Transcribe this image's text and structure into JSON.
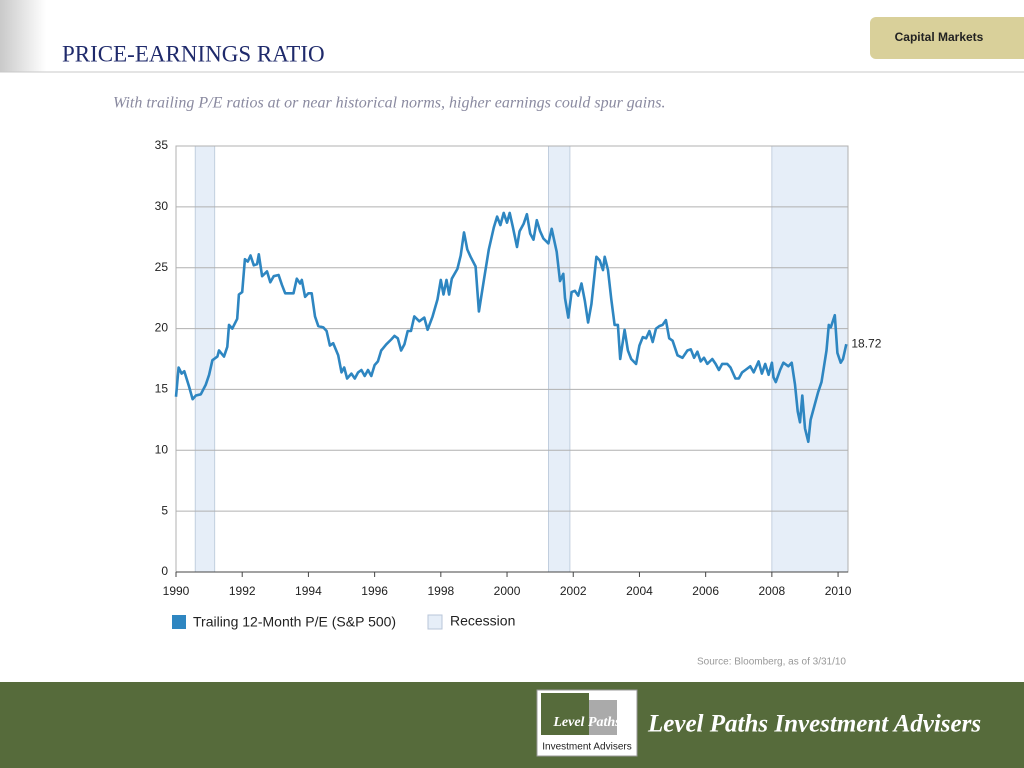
{
  "page": {
    "tab": "Capital Markets",
    "title": "PRICE-EARNINGS RATIO",
    "subtitle": "With trailing P/E ratios at or near historical norms, higher earnings could spur gains.",
    "source": "Source: Bloomberg, as of 3/31/10",
    "company": "Level Paths Investment Advisers",
    "logo_top": "Level Paths",
    "logo_bottom": "Investment Advisers"
  },
  "chart_data": {
    "type": "line",
    "x": [
      1990.0,
      1990.08,
      1990.17,
      1990.25,
      1990.4,
      1990.5,
      1990.6,
      1990.75,
      1990.9,
      1991.0,
      1991.1,
      1991.25,
      1991.3,
      1991.45,
      1991.55,
      1991.6,
      1991.7,
      1991.85,
      1991.9,
      1992.0,
      1992.08,
      1992.17,
      1992.25,
      1992.35,
      1992.45,
      1992.5,
      1992.6,
      1992.75,
      1992.85,
      1992.95,
      1993.1,
      1993.2,
      1993.3,
      1993.45,
      1993.55,
      1993.65,
      1993.75,
      1993.8,
      1993.9,
      1994.0,
      1994.1,
      1994.2,
      1994.3,
      1994.45,
      1994.55,
      1994.65,
      1994.75,
      1994.9,
      1995.0,
      1995.08,
      1995.17,
      1995.3,
      1995.4,
      1995.5,
      1995.6,
      1995.7,
      1995.8,
      1995.9,
      1996.0,
      1996.1,
      1996.2,
      1996.35,
      1996.5,
      1996.6,
      1996.7,
      1996.8,
      1996.9,
      1997.0,
      1997.1,
      1997.2,
      1997.35,
      1997.5,
      1997.6,
      1997.75,
      1997.9,
      1998.0,
      1998.08,
      1998.17,
      1998.25,
      1998.33,
      1998.5,
      1998.6,
      1998.7,
      1998.8,
      1998.9,
      1999.05,
      1999.15,
      1999.3,
      1999.45,
      1999.6,
      1999.7,
      1999.8,
      1999.9,
      2000.0,
      2000.08,
      2000.17,
      2000.3,
      2000.38,
      2000.5,
      2000.6,
      2000.7,
      2000.8,
      2000.9,
      2001.0,
      2001.1,
      2001.25,
      2001.35,
      2001.5,
      2001.6,
      2001.7,
      2001.75,
      2001.85,
      2001.95,
      2002.05,
      2002.15,
      2002.25,
      2002.35,
      2002.45,
      2002.55,
      2002.7,
      2002.8,
      2002.9,
      2002.95,
      2003.05,
      2003.15,
      2003.25,
      2003.35,
      2003.42,
      2003.55,
      2003.65,
      2003.75,
      2003.9,
      2004.0,
      2004.1,
      2004.2,
      2004.3,
      2004.4,
      2004.5,
      2004.6,
      2004.7,
      2004.8,
      2004.9,
      2005.0,
      2005.15,
      2005.3,
      2005.45,
      2005.55,
      2005.65,
      2005.75,
      2005.85,
      2005.95,
      2006.05,
      2006.2,
      2006.3,
      2006.4,
      2006.5,
      2006.65,
      2006.75,
      2006.9,
      2007.0,
      2007.1,
      2007.2,
      2007.35,
      2007.45,
      2007.6,
      2007.7,
      2007.8,
      2007.9,
      2008.0,
      2008.05,
      2008.12,
      2008.25,
      2008.35,
      2008.5,
      2008.6,
      2008.7,
      2008.78,
      2008.85,
      2008.92,
      2009.0,
      2009.1,
      2009.17,
      2009.3,
      2009.4,
      2009.5,
      2009.58,
      2009.65,
      2009.72,
      2009.78,
      2009.9,
      2009.98,
      2010.08,
      2010.15,
      2010.25
    ],
    "series": [
      {
        "name": "Trailing 12-Month P/E (S&P 500)",
        "color": "#2e86c1",
        "values": [
          14.4,
          16.8,
          16.3,
          16.5,
          15.2,
          14.2,
          14.5,
          14.6,
          15.4,
          16.2,
          17.4,
          17.7,
          18.2,
          17.7,
          18.5,
          20.3,
          20.0,
          20.8,
          22.8,
          23.0,
          25.7,
          25.5,
          26.0,
          25.2,
          25.3,
          26.1,
          24.3,
          24.7,
          23.8,
          24.3,
          24.4,
          23.6,
          22.9,
          22.9,
          22.9,
          24.1,
          23.7,
          24.0,
          22.6,
          22.9,
          22.9,
          21.0,
          20.2,
          20.1,
          19.8,
          18.6,
          18.8,
          17.8,
          16.4,
          16.8,
          15.9,
          16.3,
          15.9,
          16.4,
          16.6,
          16.1,
          16.6,
          16.1,
          17.0,
          17.3,
          18.2,
          18.7,
          19.1,
          19.4,
          19.2,
          18.2,
          18.7,
          19.8,
          19.8,
          21.0,
          20.6,
          20.9,
          19.9,
          21.0,
          22.4,
          24.0,
          22.8,
          24.0,
          22.8,
          24.1,
          24.9,
          26.0,
          27.9,
          26.5,
          25.9,
          25.1,
          21.4,
          24.0,
          26.5,
          28.3,
          29.2,
          28.5,
          29.5,
          28.7,
          29.5,
          28.4,
          26.7,
          28.0,
          28.6,
          29.4,
          27.8,
          27.3,
          28.9,
          28.0,
          27.4,
          27.0,
          28.2,
          26.3,
          23.9,
          24.5,
          22.5,
          20.9,
          23.0,
          23.1,
          22.7,
          23.7,
          22.3,
          20.5,
          22.0,
          25.9,
          25.6,
          24.8,
          25.9,
          24.8,
          22.4,
          20.3,
          20.3,
          17.5,
          19.9,
          18.2,
          17.5,
          17.1,
          18.6,
          19.3,
          19.2,
          19.8,
          18.9,
          20.0,
          20.2,
          20.3,
          20.7,
          19.2,
          19.0,
          17.8,
          17.6,
          18.2,
          18.3,
          17.6,
          18.1,
          17.3,
          17.6,
          17.1,
          17.5,
          17.1,
          16.6,
          17.1,
          17.1,
          16.8,
          15.9,
          15.9,
          16.4,
          16.6,
          16.9,
          16.4,
          17.3,
          16.3,
          17.1,
          16.2,
          17.2,
          16.0,
          15.6,
          16.6,
          17.2,
          16.9,
          17.2,
          15.4,
          13.2,
          12.3,
          14.5,
          11.8,
          10.7,
          12.5,
          13.8,
          14.8,
          15.6,
          17.0,
          18.2,
          20.3,
          20.1,
          21.1,
          18.0,
          17.2,
          17.5,
          18.72
        ]
      }
    ],
    "recessions": {
      "name": "Recession",
      "color": "#e6eef8",
      "edge": "#b8c6d8",
      "ranges": [
        [
          1990.58,
          1991.17
        ],
        [
          2001.25,
          2001.9
        ],
        [
          2008.0,
          2010.3
        ]
      ]
    },
    "xlim": [
      1990,
      2010.3
    ],
    "xticks": [
      1990,
      1992,
      1994,
      1996,
      1998,
      2000,
      2002,
      2004,
      2006,
      2008,
      2010
    ],
    "ylim": [
      0,
      35
    ],
    "yticks": [
      0,
      5,
      10,
      15,
      20,
      25,
      30,
      35
    ],
    "grid": true
  }
}
